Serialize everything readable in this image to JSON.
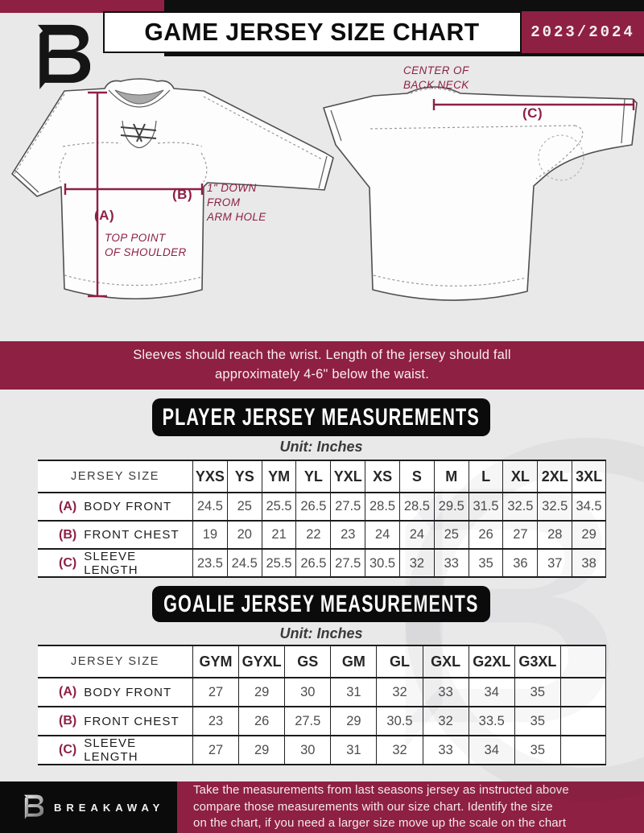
{
  "colors": {
    "maroon": "#8e2043",
    "black": "#0f0f0f",
    "page_background": "#e9e9ea",
    "table_number_text": "#4e4e4e"
  },
  "header": {
    "title": "GAME JERSEY SIZE CHART",
    "season": "2023/2024",
    "brand_initial": "B"
  },
  "diagram": {
    "front": {
      "a_label": "(A)",
      "a_caption_lines": [
        "TOP POINT",
        "OF SHOULDER"
      ],
      "b_label": "(B)",
      "b_caption_lines": [
        "1\" DOWN",
        "FROM",
        "ARM HOLE"
      ]
    },
    "back": {
      "c_label": "(C)",
      "c_caption_lines": [
        "CENTER OF",
        "BACK NECK"
      ]
    }
  },
  "note_banner": {
    "lines": [
      "Sleeves should reach the wrist. Length of the jersey should fall",
      "approximately 4-6\" below the waist."
    ]
  },
  "player_section": {
    "title": "PLAYER JERSEY MEASUREMENTS",
    "unit": "Unit: Inches",
    "table": {
      "size_label": "JERSEY SIZE",
      "sizes": [
        "YXS",
        "YS",
        "YM",
        "YL",
        "YXL",
        "XS",
        "S",
        "M",
        "L",
        "XL",
        "2XL",
        "3XL"
      ],
      "rows": [
        {
          "key": "(A)",
          "label": "BODY FRONT",
          "values": [
            "24.5",
            "25",
            "25.5",
            "26.5",
            "27.5",
            "28.5",
            "28.5",
            "29.5",
            "31.5",
            "32.5",
            "32.5",
            "34.5"
          ]
        },
        {
          "key": "(B)",
          "label": "FRONT CHEST",
          "values": [
            "19",
            "20",
            "21",
            "22",
            "23",
            "24",
            "24",
            "25",
            "26",
            "27",
            "28",
            "29"
          ]
        },
        {
          "key": "(C)",
          "label": "SLEEVE LENGTH",
          "values": [
            "23.5",
            "24.5",
            "25.5",
            "26.5",
            "27.5",
            "30.5",
            "32",
            "33",
            "35",
            "36",
            "37",
            "38"
          ]
        }
      ]
    }
  },
  "goalie_section": {
    "title": "GOALIE JERSEY MEASUREMENTS",
    "unit": "Unit: Inches",
    "table": {
      "size_label": "JERSEY SIZE",
      "sizes": [
        "GYM",
        "GYXL",
        "GS",
        "GM",
        "GL",
        "GXL",
        "G2XL",
        "G3XL",
        ""
      ],
      "rows": [
        {
          "key": "(A)",
          "label": "BODY FRONT",
          "values": [
            "27",
            "29",
            "30",
            "31",
            "32",
            "33",
            "34",
            "35",
            ""
          ]
        },
        {
          "key": "(B)",
          "label": "FRONT CHEST",
          "values": [
            "23",
            "26",
            "27.5",
            "29",
            "30.5",
            "32",
            "33.5",
            "35",
            ""
          ]
        },
        {
          "key": "(C)",
          "label": "SLEEVE LENGTH",
          "values": [
            "27",
            "29",
            "30",
            "31",
            "32",
            "33",
            "34",
            "35",
            ""
          ]
        }
      ]
    }
  },
  "footer": {
    "brand": "BREAKAWAY",
    "lines": [
      "Take the measurements from last seasons jersey as instructed above",
      "compare those measurements  with our size chart. Identify the size",
      "on the chart, if you need a larger size move up the scale on the chart"
    ]
  },
  "chart_data": [
    {
      "type": "table",
      "title": "PLAYER JERSEY MEASUREMENTS",
      "unit": "Inches",
      "columns": [
        "YXS",
        "YS",
        "YM",
        "YL",
        "YXL",
        "XS",
        "S",
        "M",
        "L",
        "XL",
        "2XL",
        "3XL"
      ],
      "series": [
        {
          "name": "(A) BODY FRONT",
          "values": [
            24.5,
            25,
            25.5,
            26.5,
            27.5,
            28.5,
            28.5,
            29.5,
            31.5,
            32.5,
            32.5,
            34.5
          ]
        },
        {
          "name": "(B) FRONT CHEST",
          "values": [
            19,
            20,
            21,
            22,
            23,
            24,
            24,
            25,
            26,
            27,
            28,
            29
          ]
        },
        {
          "name": "(C) SLEEVE LENGTH",
          "values": [
            23.5,
            24.5,
            25.5,
            26.5,
            27.5,
            30.5,
            32,
            33,
            35,
            36,
            37,
            38
          ]
        }
      ]
    },
    {
      "type": "table",
      "title": "GOALIE JERSEY MEASUREMENTS",
      "unit": "Inches",
      "columns": [
        "GYM",
        "GYXL",
        "GS",
        "GM",
        "GL",
        "GXL",
        "G2XL",
        "G3XL"
      ],
      "series": [
        {
          "name": "(A) BODY FRONT",
          "values": [
            27,
            29,
            30,
            31,
            32,
            33,
            34,
            35
          ]
        },
        {
          "name": "(B) FRONT CHEST",
          "values": [
            23,
            26,
            27.5,
            29,
            30.5,
            32,
            33.5,
            35
          ]
        },
        {
          "name": "(C) SLEEVE LENGTH",
          "values": [
            27,
            29,
            30,
            31,
            32,
            33,
            34,
            35
          ]
        }
      ]
    }
  ]
}
